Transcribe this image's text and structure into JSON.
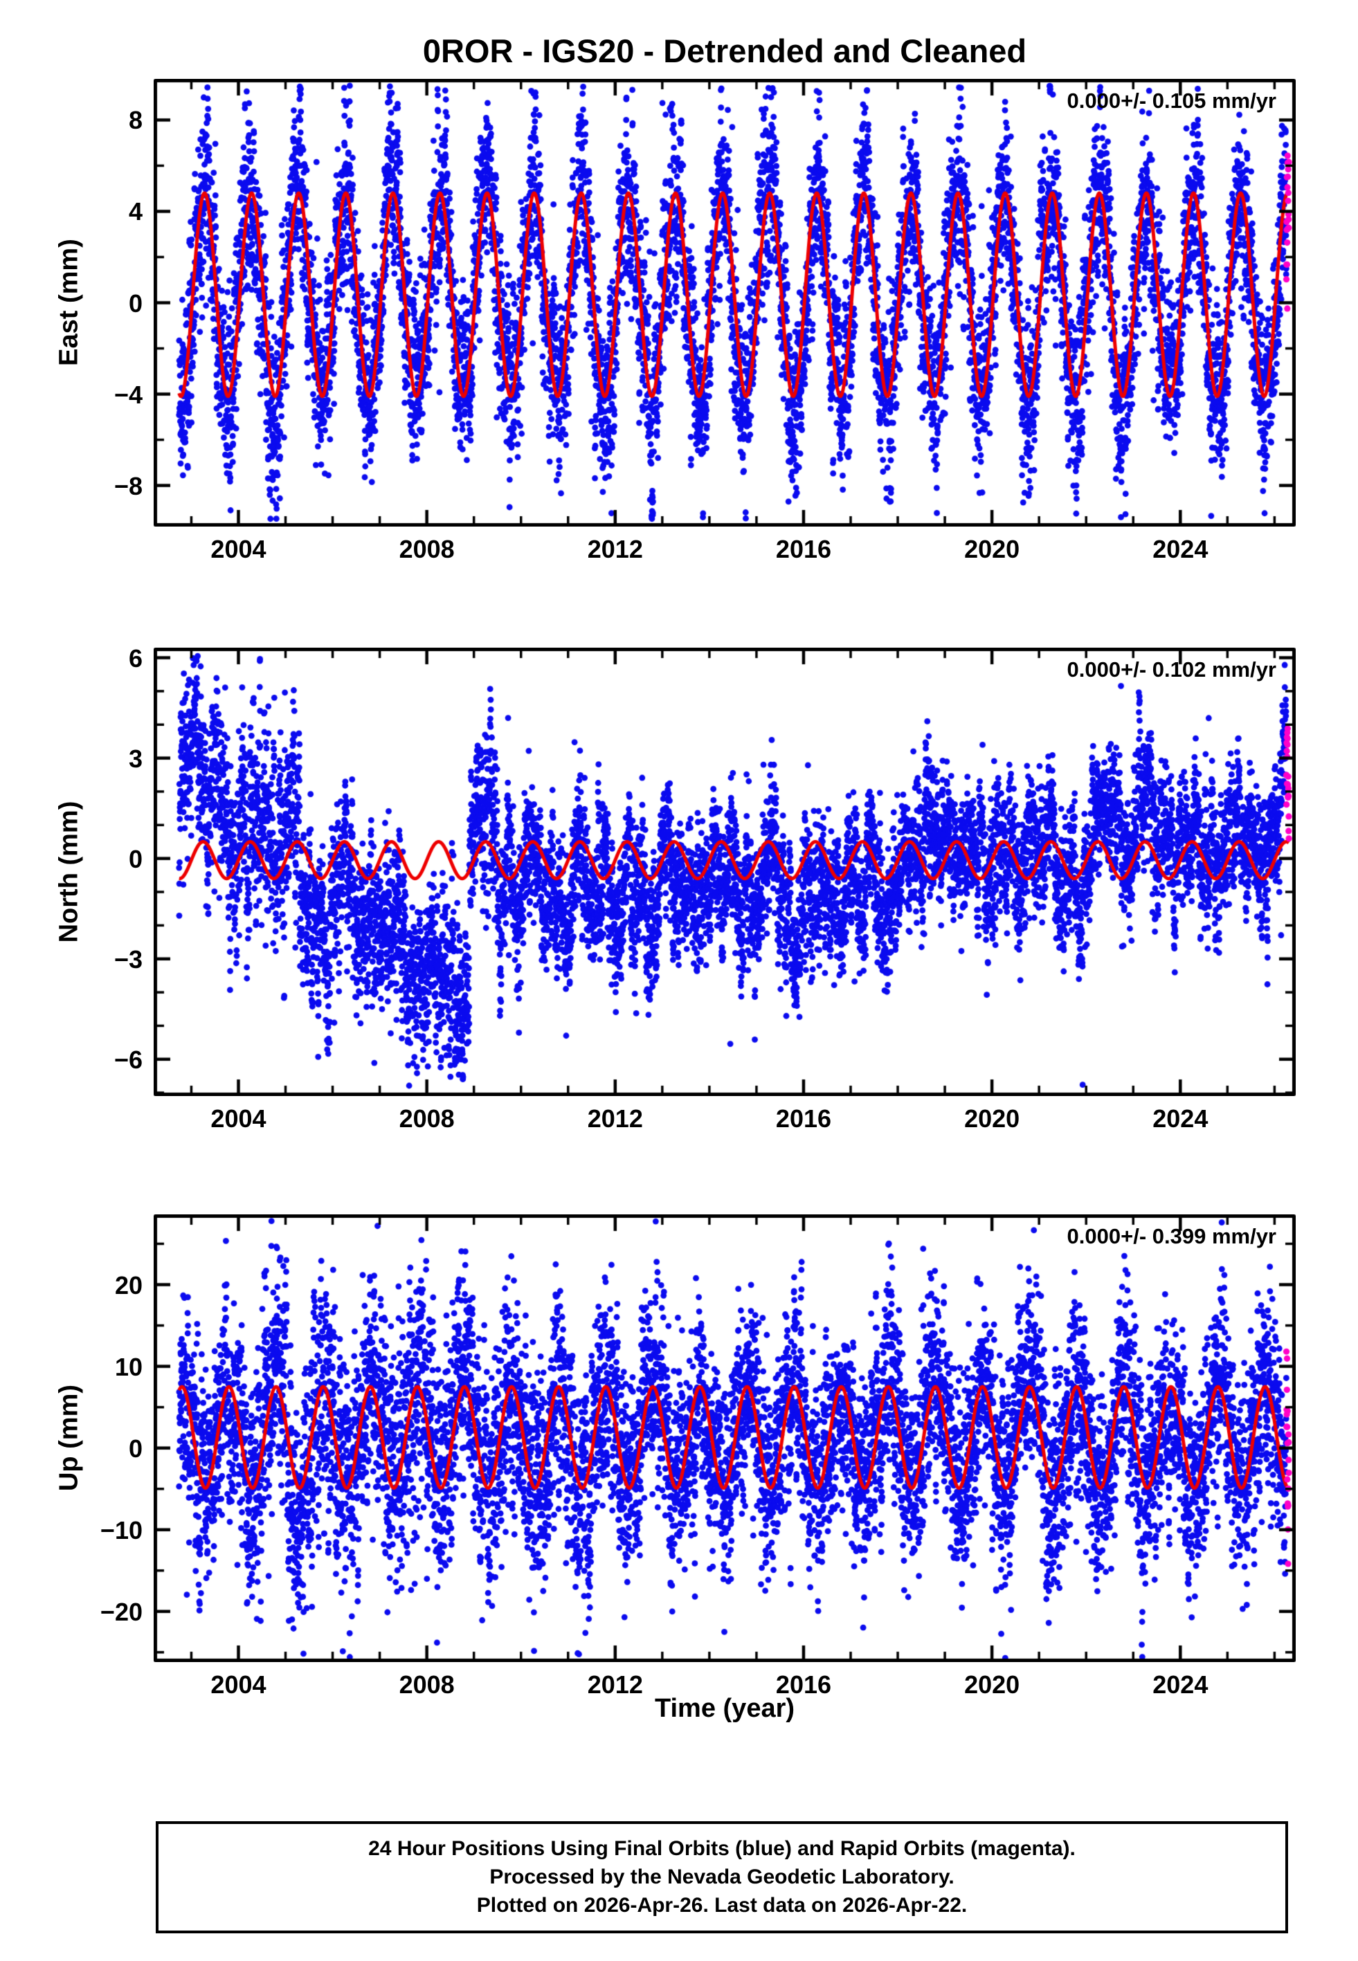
{
  "title": "0ROR - IGS20 - Detrended and Cleaned",
  "xlabel": "Time (year)",
  "caption": {
    "line1": "24 Hour Positions Using Final Orbits (blue) and Rapid Orbits (magenta).",
    "line2": "Processed by the Nevada Geodetic Laboratory.",
    "line3": "Plotted on 2026-Apr-26. Last data on 2026-Apr-22."
  },
  "colors": {
    "final_orbits_blue": "#0b0bef",
    "rapid_orbits_magenta": "#ff00c8",
    "model_red": "#ee0000",
    "frame_black": "#000000"
  },
  "chart_data": [
    {
      "type": "scatter",
      "panel": "east",
      "ylabel": "East (mm)",
      "annotation": "0.000+/- 0.105 mm/yr",
      "trend_mm_per_yr": 0.0,
      "xlim": [
        2002.2,
        2026.45
      ],
      "ylim": [
        -9.8,
        9.8
      ],
      "xticks": [
        2004,
        2008,
        2012,
        2016,
        2020,
        2024
      ],
      "xtick_labels": [
        "2004",
        "2008",
        "2012",
        "2016",
        "2020",
        "2024"
      ],
      "yticks": [
        -8,
        -4,
        0,
        4,
        8
      ],
      "ytick_labels": [
        "−8",
        "−4",
        "0",
        "4",
        "8"
      ],
      "x_minor_step": 1,
      "y_minor_step": 2,
      "model_red": {
        "mean": 0.35,
        "annual_amplitude_mm": 4.45,
        "annual_peak_at_year_fraction": 0.28
      },
      "rapid_orbits_start": 2026.25,
      "scatter": {
        "t_start": 2002.74,
        "t_end": 2026.305,
        "points_per_year": 365,
        "seed": 101,
        "rho": 0.55,
        "wander_sigma": 0.5,
        "outlier_prob": 0.03,
        "outlier_sigma": 2.3,
        "clamp": [
          -9.5,
          9.5
        ],
        "segments": [
          {
            "from": 2002.74,
            "to": 2005.5,
            "mean": 0,
            "sigma": 2.3
          },
          {
            "from": 2005.5,
            "to": 2026.31,
            "mean": 0,
            "sigma": 1.95
          }
        ]
      }
    },
    {
      "type": "scatter",
      "panel": "north",
      "ylabel": "North (mm)",
      "annotation": "0.000+/- 0.102 mm/yr",
      "trend_mm_per_yr": 0.0,
      "xlim": [
        2002.2,
        2026.45
      ],
      "ylim": [
        -7.1,
        6.3
      ],
      "xticks": [
        2004,
        2008,
        2012,
        2016,
        2020,
        2024
      ],
      "xtick_labels": [
        "2004",
        "2008",
        "2012",
        "2016",
        "2020",
        "2024"
      ],
      "yticks": [
        -6,
        -3,
        0,
        3,
        6
      ],
      "ytick_labels": [
        "−6",
        "−3",
        "0",
        "3",
        "6"
      ],
      "x_minor_step": 1,
      "y_minor_step": 1,
      "model_red": {
        "mean": -0.05,
        "annual_amplitude_mm": 0.55,
        "annual_peak_at_year_fraction": 0.25
      },
      "rapid_orbits_start": 2026.25,
      "scatter": {
        "t_start": 2002.74,
        "t_end": 2026.305,
        "points_per_year": 365,
        "seed": 202,
        "rho": 0.55,
        "wander_sigma": 0.8,
        "outlier_prob": 0.02,
        "outlier_sigma": 1.5,
        "clamp": [
          -6.85,
          6.05
        ],
        "segments": [
          {
            "from": 2002.74,
            "to": 2005.3,
            "mean": 2.1,
            "sigma": 1.4
          },
          {
            "from": 2005.3,
            "to": 2007.15,
            "mean": -1.6,
            "sigma": 1.15
          },
          {
            "from": 2007.15,
            "to": 2008.9,
            "mean": -3.1,
            "sigma": 1.2
          },
          {
            "from": 2008.9,
            "to": 2009.5,
            "mean": 1.1,
            "sigma": 1.3
          },
          {
            "from": 2009.5,
            "to": 2013.0,
            "mean": -0.9,
            "sigma": 1.0
          },
          {
            "from": 2013.0,
            "to": 2018.0,
            "mean": -0.65,
            "sigma": 0.95
          },
          {
            "from": 2018.0,
            "to": 2022.0,
            "mean": 0.05,
            "sigma": 0.95
          },
          {
            "from": 2022.0,
            "to": 2026.31,
            "mean": 0.75,
            "sigma": 0.95
          }
        ]
      }
    },
    {
      "type": "scatter",
      "panel": "up",
      "ylabel": "Up (mm)",
      "annotation": "0.000+/- 0.399 mm/yr",
      "trend_mm_per_yr": 0.0,
      "xlim": [
        2002.2,
        2026.45
      ],
      "ylim": [
        -26.2,
        28.6
      ],
      "xticks": [
        2004,
        2008,
        2012,
        2016,
        2020,
        2024
      ],
      "xtick_labels": [
        "2004",
        "2008",
        "2012",
        "2016",
        "2020",
        "2024"
      ],
      "yticks": [
        -20,
        -10,
        0,
        10,
        20
      ],
      "ytick_labels": [
        "−20",
        "−10",
        "0",
        "10",
        "20"
      ],
      "x_minor_step": 1,
      "y_minor_step": 5,
      "model_red": {
        "mean": 1.3,
        "annual_amplitude_mm": 6.2,
        "annual_peak_at_year_fraction": 0.8
      },
      "rapid_orbits_start": 2026.25,
      "scatter": {
        "t_start": 2002.74,
        "t_end": 2026.305,
        "points_per_year": 365,
        "seed": 303,
        "rho": 0.5,
        "wander_sigma": 1.6,
        "outlier_prob": 0.04,
        "outlier_sigma": 4.0,
        "clamp": [
          -25.8,
          27.8
        ],
        "segments": [
          {
            "from": 2002.74,
            "to": 2004.3,
            "mean": 0,
            "sigma": 6.3
          },
          {
            "from": 2004.3,
            "to": 2008.6,
            "mean": 0,
            "sigma": 7.8
          },
          {
            "from": 2008.6,
            "to": 2012.0,
            "mean": 0,
            "sigma": 6.6
          },
          {
            "from": 2012.0,
            "to": 2026.31,
            "mean": 0,
            "sigma": 6.0
          }
        ]
      }
    }
  ]
}
